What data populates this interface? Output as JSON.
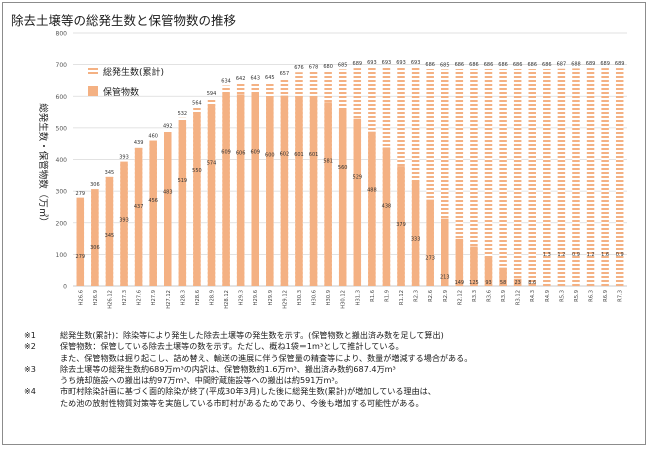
{
  "page": {
    "title": "除去土壌等の総発生数と保管物数の推移"
  },
  "chart_data": {
    "type": "bar",
    "title": "除去土壌等の総発生数と保管物数の推移",
    "ylabel": "総発生数・保管物数（万㎥）",
    "xlabel": "",
    "ylim": [
      0,
      800
    ],
    "yticks": [
      0,
      100,
      200,
      300,
      400,
      500,
      600,
      700,
      800
    ],
    "grid": true,
    "legend_position": "top-left",
    "categories": [
      "H26.6",
      "H26.9",
      "H26.12",
      "H27.3",
      "H27.6",
      "H27.9",
      "H27.12",
      "H28.3",
      "H28.6",
      "H28.9",
      "H28.12",
      "H29.3",
      "H29.6",
      "H29.9",
      "H29.12",
      "H30.3",
      "H30.6",
      "H30.9",
      "H30.12",
      "H31.3",
      "R1.6",
      "R1.9",
      "R1.12",
      "R2.3",
      "R2.6",
      "R2.9",
      "R2.12",
      "R3.3",
      "R3.6",
      "R3.9",
      "R3.12",
      "R4.3",
      "R4.9",
      "R5.3",
      "R5.9",
      "R6.3",
      "R6.9",
      "R7.3"
    ],
    "series": [
      {
        "name": "総発生数(累計)",
        "style": "dashed-outline",
        "color": "#f4b183",
        "values": [
          279,
          306,
          345,
          393,
          439,
          460,
          492,
          532,
          564,
          594,
          634,
          642,
          643,
          645,
          657,
          676,
          678,
          680,
          685,
          689,
          693,
          693,
          693,
          693,
          686,
          685,
          686,
          686,
          686,
          686,
          686,
          686,
          686,
          687,
          688,
          689,
          689,
          689
        ],
        "labels": [
          "279",
          "306",
          "345",
          "393",
          "439",
          "460",
          "492",
          "532",
          "564",
          "594",
          "634",
          "642",
          "643",
          "645",
          "657",
          "676",
          "678",
          "680",
          "685",
          "689",
          "693",
          "693",
          "693",
          "693",
          "686",
          "685",
          "686",
          "686",
          "686",
          "686",
          "686",
          "686",
          "686",
          "687",
          "688",
          "689",
          "689",
          "689"
        ]
      },
      {
        "name": "保管物数",
        "style": "solid",
        "color": "#f4b183",
        "values": [
          279,
          306,
          345,
          393,
          437,
          456,
          483,
          519,
          550,
          574,
          609,
          606,
          609,
          600,
          602,
          601,
          601,
          581,
          560,
          529,
          488,
          438,
          379,
          333,
          273,
          213,
          149,
          125,
          93,
          58,
          23,
          8.6,
          1.3,
          1.2,
          0.9,
          1.2,
          1.6,
          0.9
        ],
        "labels": [
          "279",
          "306",
          "345",
          "393",
          "437",
          "456",
          "483",
          "519",
          "550",
          "574",
          "609",
          "606",
          "609",
          "600",
          "602",
          "601",
          "601",
          "581",
          "560",
          "529",
          "488",
          "438",
          "379",
          "333",
          "273",
          "213",
          "149",
          "125",
          "93",
          "58",
          "23",
          "8.6",
          "1.3",
          "1.2",
          "0.9",
          "1.2",
          "1.6",
          "0.9"
        ]
      }
    ]
  },
  "notes": [
    {
      "mark": "※1",
      "text": "総発生数(累計)：除染等により発生した除去土壌等の発生数を示す。(保管物数と搬出済み数を足して算出)"
    },
    {
      "mark": "※2",
      "text": "保管物数：保管している除去土壌等の数を示す。ただし、概ね1袋＝1m³として推計している。",
      "cont": "また、保管物数は掘り起こし、詰め替え、輸送の進展に伴う保管量の精査等により、数量が増減する場合がある。"
    },
    {
      "mark": "※3",
      "text": "除去土壌等の総発生数約689万m³の内訳は、保管物数約1.6万m³、搬出済み数約687.4万m³",
      "cont": "うち焼却施設への搬出は約97万m³、中間貯蔵施設等への搬出は約591万m³。"
    },
    {
      "mark": "※4",
      "text": "市町村除染計画に基づく面的除染が終了(平成30年3月)した後に総発生数(累計)が増加している理由は、",
      "cont": "ため池の放射性物質対策等を実施している市町村があるためであり、今後も増加する可能性がある。"
    }
  ]
}
